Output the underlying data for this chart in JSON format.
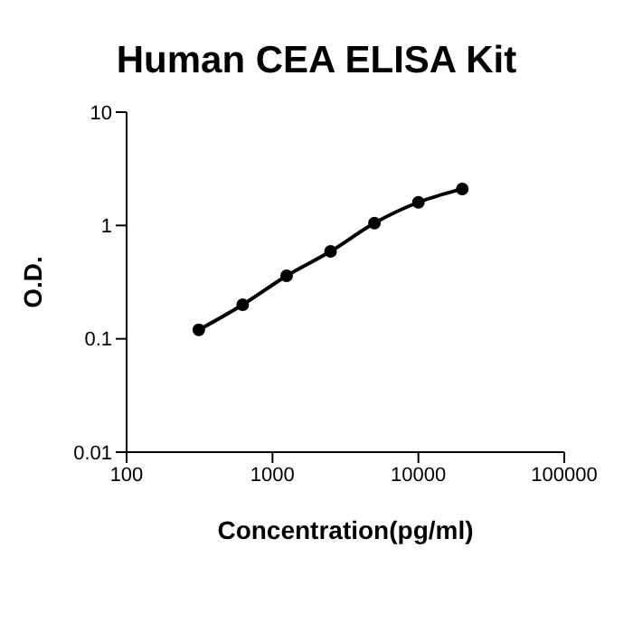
{
  "chart_data": {
    "type": "line",
    "title": "Human CEA ELISA Kit",
    "xlabel": "Concentration(pg/ml)",
    "ylabel": "O.D.",
    "log": "xy",
    "grid": false,
    "legend": false,
    "marker": "circle",
    "line_style": "solid",
    "x": [
      312.5,
      625,
      1250,
      2500,
      5000,
      10000,
      20000
    ],
    "series": [
      {
        "color": "#000000",
        "values": [
          0.12,
          0.2,
          0.36,
          0.59,
          1.05,
          1.6,
          2.1
        ]
      }
    ],
    "xlim": [
      100,
      100000
    ],
    "xticks": [
      100,
      1000,
      10000,
      100000
    ],
    "ylim": [
      0.01,
      10
    ],
    "yticks": [
      0.01,
      0.1,
      1,
      10
    ]
  }
}
